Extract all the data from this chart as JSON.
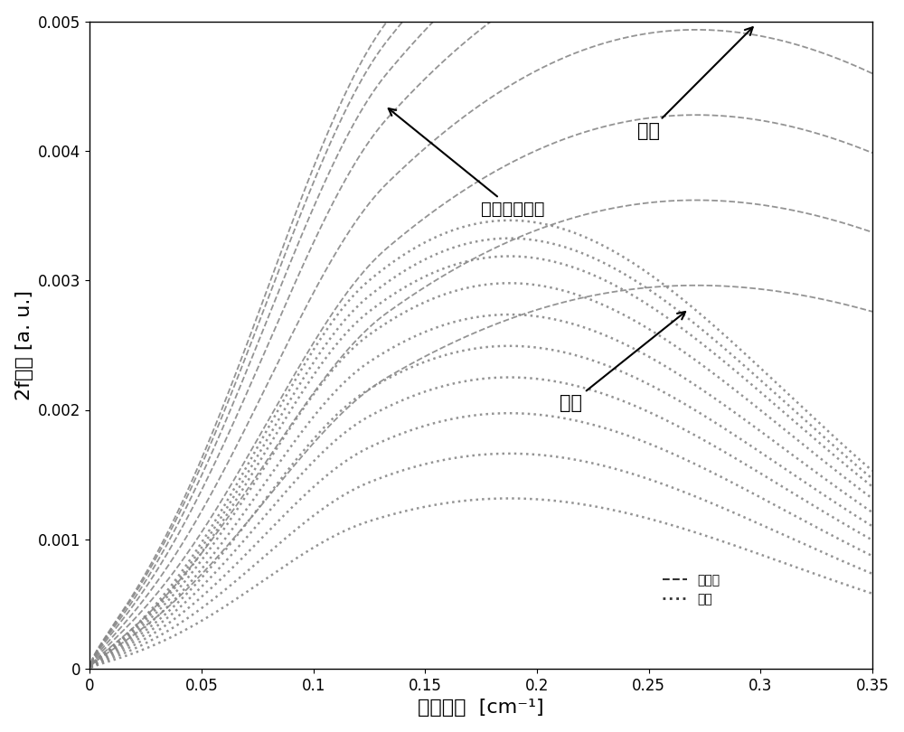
{
  "xlabel": "调制幅度  [cm⁻¹]",
  "ylabel": "2f信号 [a. u.]",
  "xlim": [
    0,
    0.35
  ],
  "ylim": [
    0,
    0.005
  ],
  "xticks": [
    0,
    0.05,
    0.1,
    0.15,
    0.2,
    0.25,
    0.3,
    0.35
  ],
  "yticks": [
    0,
    0.001,
    0.002,
    0.003,
    0.004,
    0.005
  ],
  "background_color": "#ffffff",
  "dashed_label": "峰谷高",
  "dotted_label": "峰高",
  "annot1_text": "压力的操作点",
  "annot_dash_label": "压力",
  "annot_dot_label": "压力",
  "curve_color": "#888888",
  "legend_color": "#333333",
  "n_dash": 8,
  "n_dot": 10,
  "dash_scales": [
    0.45,
    0.55,
    0.65,
    0.75,
    0.85,
    0.92,
    0.97,
    1.0
  ],
  "dot_scales": [
    0.38,
    0.48,
    0.57,
    0.65,
    0.72,
    0.79,
    0.86,
    0.92,
    0.96,
    1.0
  ]
}
